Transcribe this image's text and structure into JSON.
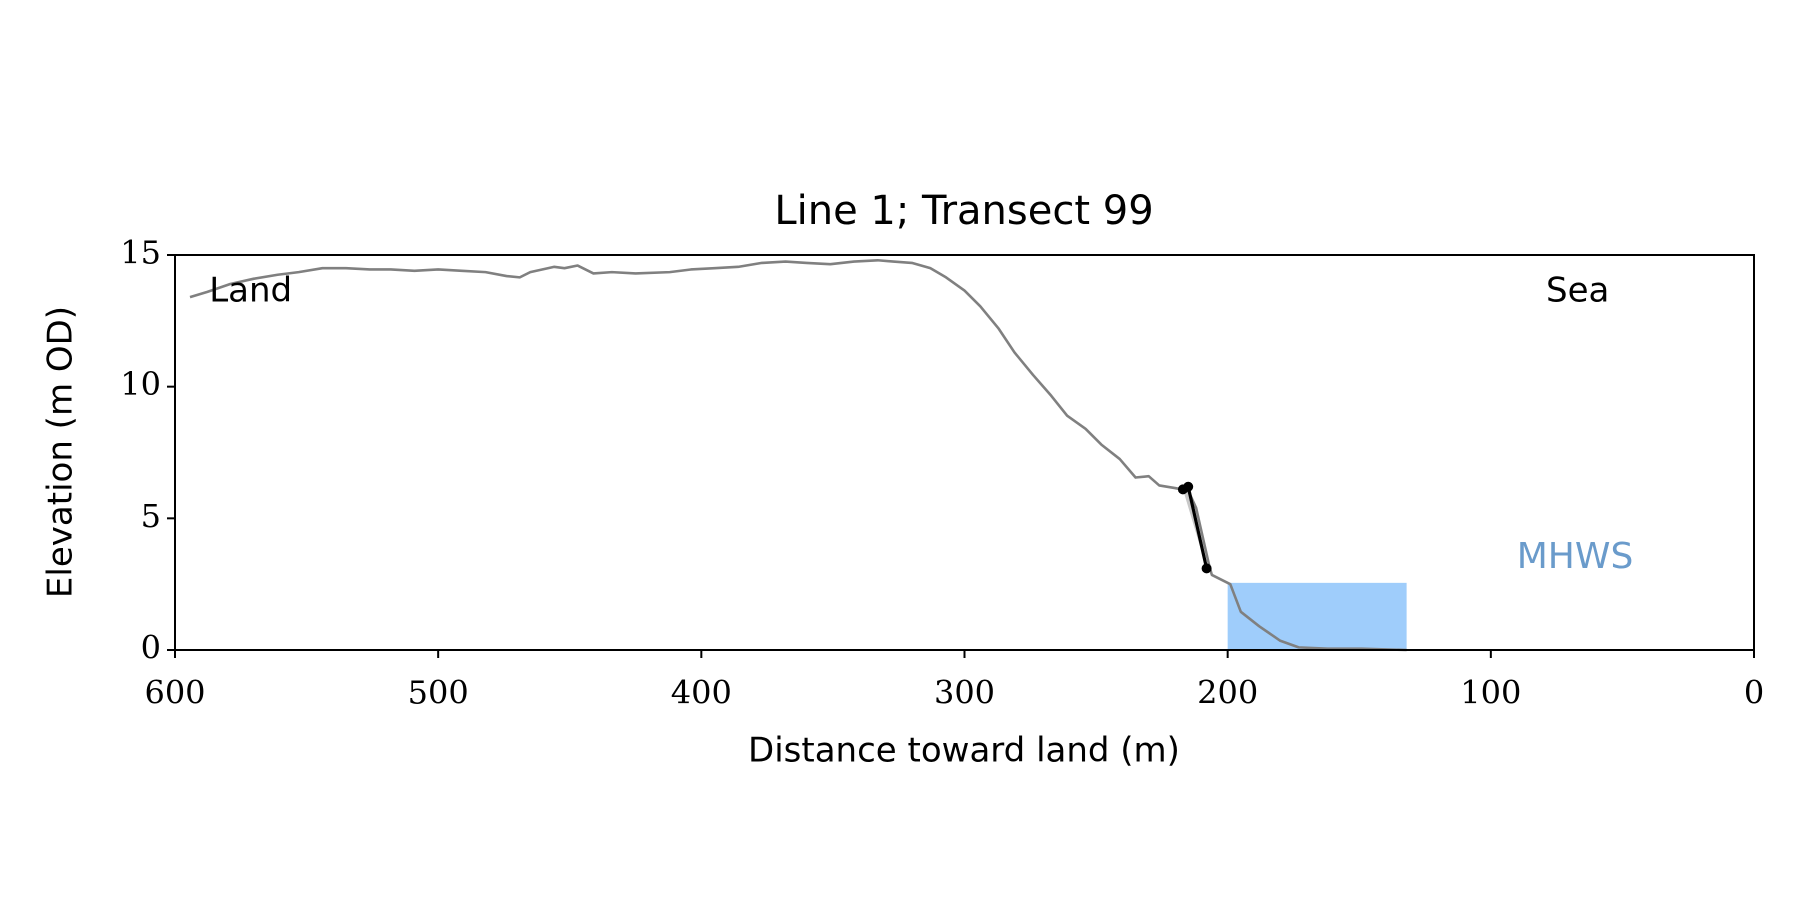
{
  "chart_data": {
    "type": "line",
    "title": "Line 1; Transect 99",
    "xlabel": "Distance toward land (m)",
    "ylabel": "Elevation (m OD)",
    "xlim": [
      600,
      0
    ],
    "ylim": [
      0,
      15
    ],
    "xticks": [
      600,
      500,
      400,
      300,
      200,
      100,
      0
    ],
    "yticks": [
      0,
      5,
      10,
      15
    ],
    "series": [
      {
        "color": "#808080",
        "x": [
          594.3,
          587.7,
          579,
          570,
          561,
          553,
          544,
          535,
          526,
          518,
          509,
          500,
          491,
          482,
          474,
          469,
          465,
          456,
          452,
          447,
          441,
          434,
          425,
          412,
          404,
          395,
          386,
          377,
          368,
          360,
          351,
          342,
          333,
          327,
          320,
          313,
          307,
          300,
          294,
          287,
          281,
          274,
          267,
          261,
          254,
          248,
          241,
          235,
          230,
          226,
          220,
          215,
          212,
          207,
          206,
          199,
          195,
          188,
          180,
          173,
          162,
          149,
          132
        ],
        "values": [
          13.4,
          13.6,
          13.9,
          14.1,
          14.25,
          14.35,
          14.5,
          14.5,
          14.45,
          14.45,
          14.4,
          14.45,
          14.4,
          14.35,
          14.2,
          14.15,
          14.35,
          14.55,
          14.5,
          14.6,
          14.3,
          14.35,
          14.3,
          14.35,
          14.45,
          14.5,
          14.55,
          14.7,
          14.75,
          14.7,
          14.65,
          14.75,
          14.8,
          14.75,
          14.7,
          14.5,
          14.15,
          13.65,
          13.05,
          12.2,
          11.3,
          10.45,
          9.65,
          8.9,
          8.4,
          7.8,
          7.25,
          6.55,
          6.6,
          6.25,
          6.15,
          6.05,
          5.4,
          3.2,
          2.85,
          2.5,
          1.45,
          0.9,
          0.35,
          0.1,
          0.05,
          0.05,
          0
        ]
      },
      {
        "color": "#000000",
        "markers": true,
        "x": [
          217,
          215,
          208
        ],
        "values": [
          6.1,
          6.2,
          3.1
        ]
      }
    ],
    "mhws": {
      "label": "MHWS",
      "x_range": [
        200,
        132
      ],
      "level": 2.55,
      "color": "#9fcdfb",
      "text_color": "#6a9bcb"
    },
    "annotations": [
      "Land",
      "Sea"
    ]
  }
}
